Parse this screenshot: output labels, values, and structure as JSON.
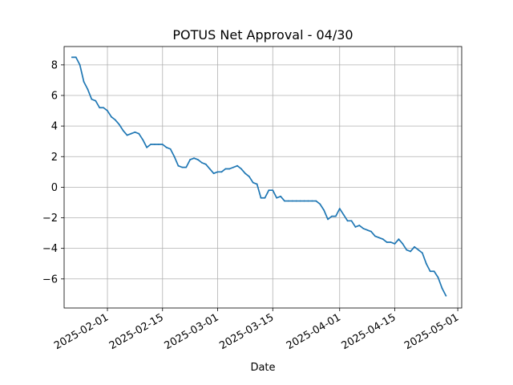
{
  "chart_data": {
    "type": "line",
    "title": "POTUS Net Approval - 04/30",
    "xlabel": "Date",
    "ylabel": "",
    "x_tick_labels": [
      "2025-02-01",
      "2025-02-15",
      "2025-03-01",
      "2025-03-15",
      "2025-04-01",
      "2025-04-15",
      "2025-05-01"
    ],
    "y_ticks": [
      -6,
      -4,
      -2,
      0,
      2,
      4,
      6,
      8
    ],
    "xlim": [
      "2025-01-21",
      "2025-05-02"
    ],
    "ylim": [
      -7.9,
      9.2
    ],
    "grid": true,
    "series": [
      {
        "color": "#1f77b4",
        "points": [
          [
            "2025-01-23",
            8.5
          ],
          [
            "2025-01-24",
            8.5
          ],
          [
            "2025-01-25",
            8.0
          ],
          [
            "2025-01-26",
            6.9
          ],
          [
            "2025-01-27",
            6.4
          ],
          [
            "2025-01-28",
            5.75
          ],
          [
            "2025-01-29",
            5.65
          ],
          [
            "2025-01-30",
            5.2
          ],
          [
            "2025-01-31",
            5.2
          ],
          [
            "2025-02-01",
            5.0
          ],
          [
            "2025-02-02",
            4.6
          ],
          [
            "2025-02-03",
            4.4
          ],
          [
            "2025-02-04",
            4.1
          ],
          [
            "2025-02-05",
            3.7
          ],
          [
            "2025-02-06",
            3.4
          ],
          [
            "2025-02-07",
            3.5
          ],
          [
            "2025-02-08",
            3.6
          ],
          [
            "2025-02-09",
            3.5
          ],
          [
            "2025-02-10",
            3.1
          ],
          [
            "2025-02-11",
            2.6
          ],
          [
            "2025-02-12",
            2.8
          ],
          [
            "2025-02-13",
            2.8
          ],
          [
            "2025-02-14",
            2.8
          ],
          [
            "2025-02-15",
            2.8
          ],
          [
            "2025-02-16",
            2.6
          ],
          [
            "2025-02-17",
            2.5
          ],
          [
            "2025-02-18",
            2.0
          ],
          [
            "2025-02-19",
            1.4
          ],
          [
            "2025-02-20",
            1.3
          ],
          [
            "2025-02-21",
            1.3
          ],
          [
            "2025-02-22",
            1.8
          ],
          [
            "2025-02-23",
            1.9
          ],
          [
            "2025-02-24",
            1.8
          ],
          [
            "2025-02-25",
            1.6
          ],
          [
            "2025-02-26",
            1.5
          ],
          [
            "2025-02-27",
            1.2
          ],
          [
            "2025-02-28",
            0.9
          ],
          [
            "2025-03-01",
            1.0
          ],
          [
            "2025-03-02",
            1.0
          ],
          [
            "2025-03-03",
            1.2
          ],
          [
            "2025-03-04",
            1.2
          ],
          [
            "2025-03-05",
            1.3
          ],
          [
            "2025-03-06",
            1.4
          ],
          [
            "2025-03-07",
            1.2
          ],
          [
            "2025-03-08",
            0.9
          ],
          [
            "2025-03-09",
            0.7
          ],
          [
            "2025-03-10",
            0.3
          ],
          [
            "2025-03-11",
            0.2
          ],
          [
            "2025-03-12",
            -0.7
          ],
          [
            "2025-03-13",
            -0.7
          ],
          [
            "2025-03-14",
            -0.2
          ],
          [
            "2025-03-15",
            -0.2
          ],
          [
            "2025-03-16",
            -0.7
          ],
          [
            "2025-03-17",
            -0.6
          ],
          [
            "2025-03-18",
            -0.9
          ],
          [
            "2025-03-19",
            -0.9
          ],
          [
            "2025-03-20",
            -0.9
          ],
          [
            "2025-03-21",
            -0.9
          ],
          [
            "2025-03-22",
            -0.9
          ],
          [
            "2025-03-23",
            -0.9
          ],
          [
            "2025-03-24",
            -0.9
          ],
          [
            "2025-03-25",
            -0.9
          ],
          [
            "2025-03-26",
            -0.9
          ],
          [
            "2025-03-27",
            -1.1
          ],
          [
            "2025-03-28",
            -1.5
          ],
          [
            "2025-03-29",
            -2.1
          ],
          [
            "2025-03-30",
            -1.9
          ],
          [
            "2025-03-31",
            -1.9
          ],
          [
            "2025-04-01",
            -1.4
          ],
          [
            "2025-04-02",
            -1.8
          ],
          [
            "2025-04-03",
            -2.2
          ],
          [
            "2025-04-04",
            -2.2
          ],
          [
            "2025-04-05",
            -2.6
          ],
          [
            "2025-04-06",
            -2.5
          ],
          [
            "2025-04-07",
            -2.7
          ],
          [
            "2025-04-08",
            -2.8
          ],
          [
            "2025-04-09",
            -2.9
          ],
          [
            "2025-04-10",
            -3.2
          ],
          [
            "2025-04-11",
            -3.3
          ],
          [
            "2025-04-12",
            -3.4
          ],
          [
            "2025-04-13",
            -3.6
          ],
          [
            "2025-04-14",
            -3.6
          ],
          [
            "2025-04-15",
            -3.7
          ],
          [
            "2025-04-16",
            -3.4
          ],
          [
            "2025-04-17",
            -3.7
          ],
          [
            "2025-04-18",
            -4.1
          ],
          [
            "2025-04-19",
            -4.2
          ],
          [
            "2025-04-20",
            -3.9
          ],
          [
            "2025-04-21",
            -4.1
          ],
          [
            "2025-04-22",
            -4.3
          ],
          [
            "2025-04-23",
            -5.0
          ],
          [
            "2025-04-24",
            -5.5
          ],
          [
            "2025-04-25",
            -5.5
          ],
          [
            "2025-04-26",
            -5.9
          ],
          [
            "2025-04-27",
            -6.6
          ],
          [
            "2025-04-28",
            -7.1
          ]
        ]
      }
    ]
  }
}
